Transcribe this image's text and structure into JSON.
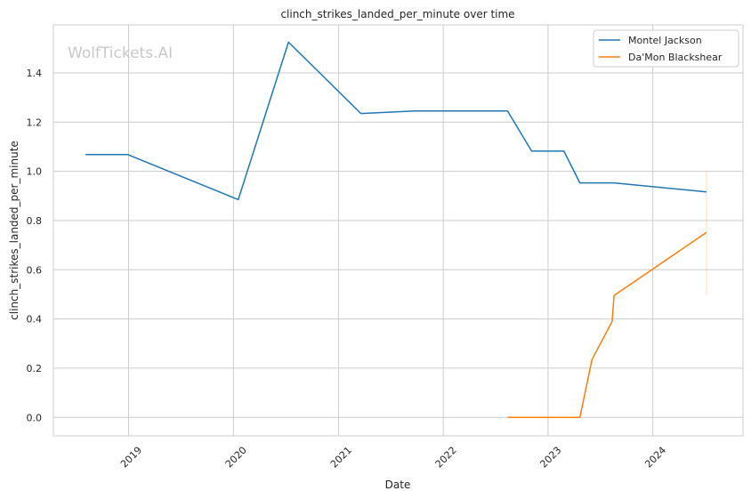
{
  "watermark": "WolfTickets.AI",
  "chart_data": {
    "type": "line",
    "title": "clinch_strikes_landed_per_minute over time",
    "xlabel": "Date",
    "ylabel": "clinch_strikes_landed_per_minute",
    "xlim": [
      "2018-04-14",
      "2024-11-10"
    ],
    "ylim": [
      -0.075,
      1.595
    ],
    "x_ticks": [
      "2019",
      "2020",
      "2021",
      "2022",
      "2023",
      "2024"
    ],
    "y_ticks": [
      "0.0",
      "0.2",
      "0.4",
      "0.6",
      "0.8",
      "1.0",
      "1.2",
      "1.4"
    ],
    "grid": true,
    "legend_position": "top-right",
    "colors": {
      "Montel Jackson": "#1f77b4",
      "Da'Mon Blackshear": "#ff7f0e"
    },
    "series": [
      {
        "name": "Montel Jackson",
        "color": "#1f77b4",
        "x": [
          "2018-08-04",
          "2018-12-29",
          "2020-01-18",
          "2020-07-11",
          "2021-03-20",
          "2021-09-25",
          "2022-08-13",
          "2022-11-05",
          "2023-02-25",
          "2023-04-22",
          "2023-08-19",
          "2024-07-06"
        ],
        "y": [
          1.068,
          1.068,
          0.885,
          1.525,
          1.235,
          1.245,
          1.245,
          1.082,
          1.082,
          0.953,
          0.953,
          0.916
        ]
      },
      {
        "name": "Da'Mon Blackshear",
        "color": "#ff7f0e",
        "x": [
          "2022-08-13",
          "2023-04-22",
          "2023-06-03",
          "2023-08-12",
          "2023-08-19",
          "2024-07-06"
        ],
        "y": [
          0.0,
          0.0,
          0.235,
          0.39,
          0.495,
          0.752
        ]
      }
    ],
    "error_band": {
      "series": "Da'Mon Blackshear",
      "x": "2024-07-06",
      "low": 0.495,
      "high": 1.0
    }
  }
}
